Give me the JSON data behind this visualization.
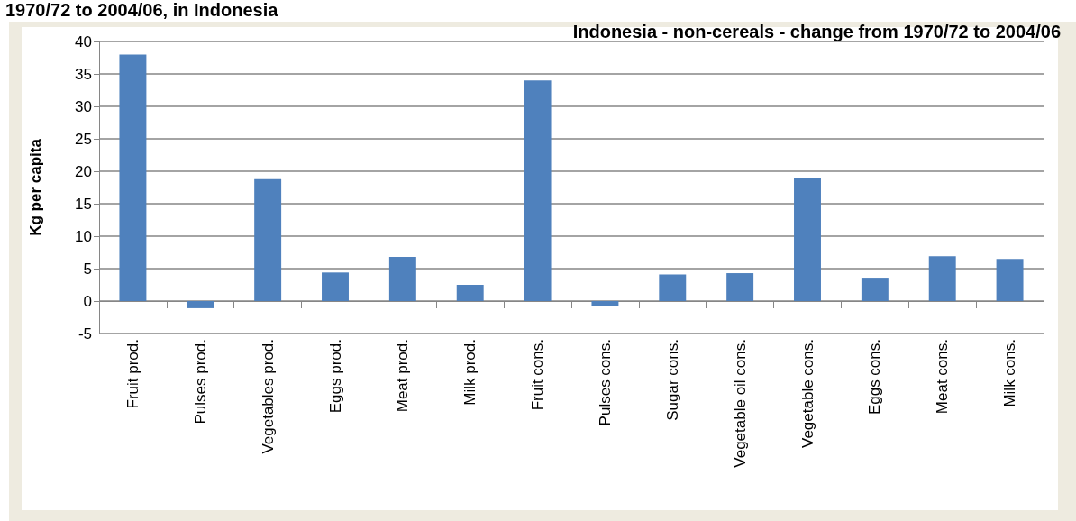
{
  "chart_data": {
    "type": "bar",
    "title": "Indonesia - non-cereals - change from 1970/72 to 2004/06",
    "ylabel": "Kg per capita",
    "annotations": [
      "1970/72 to 2004/06, in Indonesia"
    ],
    "categories": [
      "Fruit prod.",
      "Pulses prod.",
      "Vegetables prod.",
      "Eggs prod.",
      "Meat prod.",
      "Milk prod.",
      "Fruit cons.",
      "Pulses cons.",
      "Sugar cons.",
      "Vegetable oil cons.",
      "Vegetable cons.",
      "Eggs cons.",
      "Meat cons.",
      "Milk cons."
    ],
    "values": [
      38,
      -1.1,
      18.8,
      4.4,
      6.8,
      2.5,
      34.0,
      -0.8,
      4.1,
      4.3,
      18.9,
      3.6,
      6.9,
      6.5
    ],
    "color": "#4f81bd",
    "ylim": [
      -5,
      40
    ],
    "yticks": [
      -5,
      0,
      5,
      10,
      15,
      20,
      25,
      30,
      35,
      40
    ],
    "grid": "y"
  }
}
